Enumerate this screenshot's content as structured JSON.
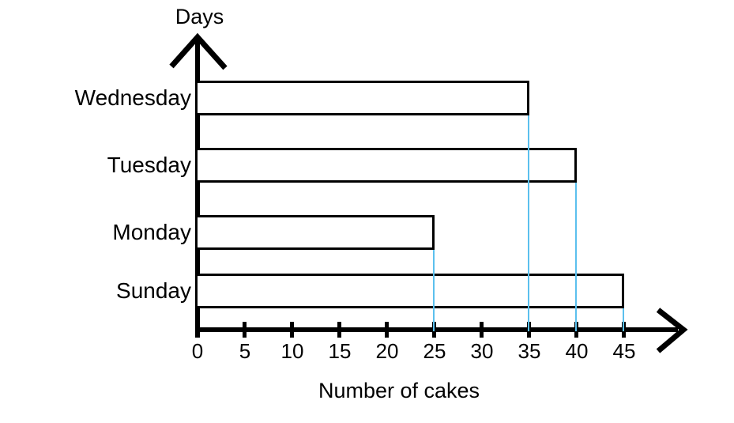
{
  "chart_data": {
    "type": "bar",
    "orientation": "horizontal",
    "title": "",
    "categories": [
      "Wednesday",
      "Tuesday",
      "Monday",
      "Sunday"
    ],
    "values": [
      35,
      40,
      25,
      45
    ],
    "xlabel": "Number of cakes",
    "ylabel": "Days",
    "xticks": [
      0,
      5,
      10,
      15,
      20,
      25,
      30,
      35,
      40,
      45
    ],
    "xlim": [
      0,
      50
    ],
    "legend": "none",
    "grid": "off",
    "guide_lines": {
      "description": "vertical line from each bar end down to x-axis",
      "values": [
        35,
        40,
        25,
        45
      ],
      "color": "#5BC0EE"
    },
    "bar_fill": "#FFFFFF",
    "bar_border_color": "#000000",
    "axis_color": "#000000",
    "text_color": "#000000"
  }
}
